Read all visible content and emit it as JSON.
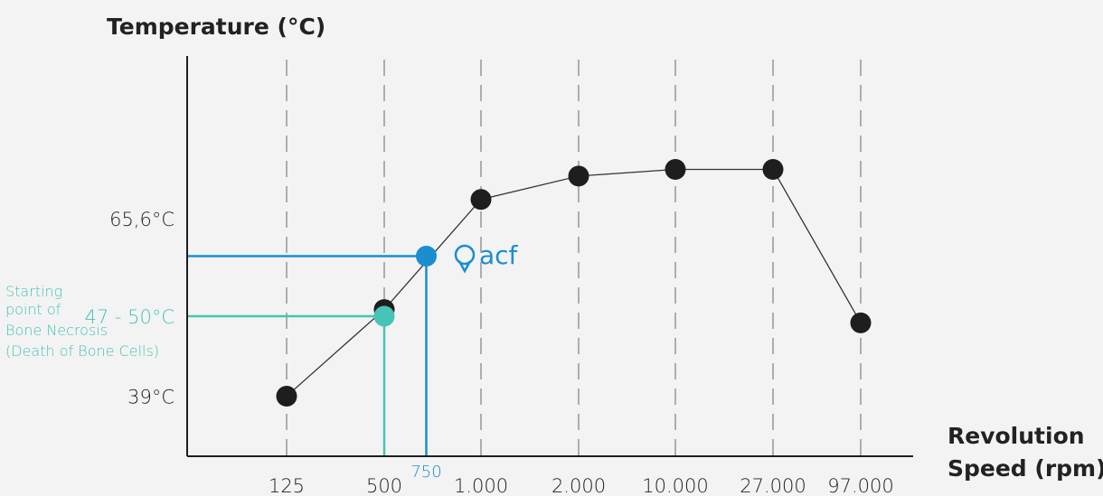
{
  "chart_data": {
    "type": "line",
    "title": "",
    "ylabel": "Temperature (°C)",
    "xlabel_lines": [
      "Revolution",
      "Speed (rpm)"
    ],
    "categories": [
      "125",
      "500",
      "1.000",
      "2.000",
      "10.000",
      "27.000",
      "97.000"
    ],
    "y_unit": "°C",
    "ylim": [
      30,
      90
    ],
    "y_ticks": [
      {
        "value": 39,
        "label": "39°C"
      },
      {
        "value": 65.6,
        "label": "65,6°C"
      }
    ],
    "series": [
      {
        "values": [
          39,
          52,
          68.5,
          72,
          73,
          73,
          50
        ]
      }
    ],
    "highlights": [
      {
        "category": "500",
        "y": 51,
        "label": "47 - 50°C",
        "note": [
          "Starting",
          "point of",
          "Bone Necrosis",
          "(Death of Bone Cells)"
        ],
        "color": "#46c4b5"
      },
      {
        "x_position_between": [
          "500",
          "1.000"
        ],
        "x_label": "750",
        "y": 60,
        "color": "#1a8ecf"
      }
    ],
    "grid": "vertical-dashed",
    "logo": {
      "text": "acf",
      "color": "#1a8ecf"
    },
    "colors": {
      "line": "#333333",
      "point": "#1e1e1e",
      "teal": "#46c4b5",
      "blue": "#1a8ecf",
      "grid": "#888888"
    }
  }
}
